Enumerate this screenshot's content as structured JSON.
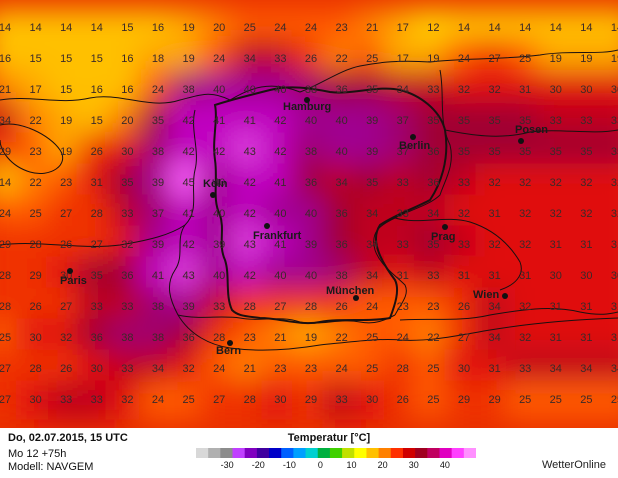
{
  "grid": [
    [
      14,
      14,
      14,
      14,
      15,
      16,
      19,
      20,
      25,
      24,
      24,
      23,
      21,
      17,
      12,
      14,
      14,
      14,
      14,
      14,
      14
    ],
    [
      16,
      15,
      15,
      15,
      16,
      18,
      19,
      24,
      34,
      33,
      26,
      22,
      25,
      17,
      19,
      24,
      27,
      25,
      19,
      19,
      19
    ],
    [
      21,
      17,
      15,
      16,
      16,
      24,
      38,
      40,
      40,
      40,
      38,
      36,
      35,
      34,
      33,
      32,
      32,
      31,
      30,
      30,
      30
    ],
    [
      34,
      22,
      19,
      15,
      20,
      35,
      42,
      41,
      41,
      42,
      40,
      40,
      39,
      37,
      35,
      35,
      35,
      35,
      33,
      33,
      33
    ],
    [
      29,
      23,
      19,
      26,
      30,
      38,
      42,
      42,
      43,
      42,
      38,
      40,
      39,
      37,
      36,
      35,
      35,
      35,
      35,
      35,
      35
    ],
    [
      14,
      22,
      23,
      31,
      35,
      39,
      45,
      40,
      42,
      41,
      36,
      34,
      35,
      33,
      36,
      33,
      32,
      32,
      32,
      32,
      32
    ],
    [
      24,
      25,
      27,
      28,
      33,
      37,
      41,
      40,
      42,
      40,
      40,
      36,
      34,
      33,
      34,
      32,
      31,
      32,
      32,
      32,
      32
    ],
    [
      29,
      28,
      26,
      27,
      32,
      39,
      42,
      39,
      43,
      41,
      39,
      36,
      34,
      33,
      35,
      33,
      32,
      32,
      31,
      31,
      31
    ],
    [
      28,
      29,
      30,
      35,
      36,
      41,
      43,
      40,
      42,
      40,
      40,
      38,
      34,
      31,
      33,
      31,
      31,
      31,
      30,
      30,
      30
    ],
    [
      28,
      26,
      27,
      33,
      33,
      38,
      39,
      33,
      28,
      27,
      28,
      26,
      24,
      23,
      23,
      26,
      34,
      32,
      31,
      31,
      31
    ],
    [
      25,
      30,
      32,
      36,
      38,
      38,
      36,
      28,
      23,
      21,
      19,
      22,
      25,
      24,
      22,
      27,
      34,
      32,
      31,
      31,
      31
    ],
    [
      27,
      28,
      26,
      30,
      33,
      34,
      32,
      24,
      21,
      23,
      23,
      24,
      25,
      28,
      25,
      30,
      31,
      33,
      34,
      34,
      34
    ],
    [
      27,
      30,
      33,
      33,
      32,
      24,
      25,
      27,
      28,
      30,
      29,
      33,
      30,
      26,
      25,
      29,
      29,
      25,
      25,
      25,
      25
    ]
  ],
  "cities": [
    {
      "name": "Hamburg",
      "label": "Hamburg"
    },
    {
      "name": "Berlin",
      "label": "Berlin"
    },
    {
      "name": "Posen",
      "label": "Posen"
    },
    {
      "name": "Koln",
      "label": "Köln"
    },
    {
      "name": "Frankfurt",
      "label": "Frankfurt"
    },
    {
      "name": "Prag",
      "label": "Prag"
    },
    {
      "name": "Paris",
      "label": "Paris"
    },
    {
      "name": "Munchen",
      "label": "München"
    },
    {
      "name": "Wien",
      "label": "Wien"
    },
    {
      "name": "Bern",
      "label": "Bern"
    }
  ],
  "info": {
    "date": "Do, 02.07.2015, 15 UTC",
    "run": "Mo 12 +75h",
    "model": "Modell: NAVGEM"
  },
  "legend": {
    "title": "Temperatur [°C]",
    "ticks": [
      "-30",
      "-20",
      "-10",
      "0",
      "10",
      "20",
      "30",
      "40"
    ],
    "range": [
      -40,
      50
    ],
    "colors": [
      "#d8d8d8",
      "#b0b0b0",
      "#8c8c8c",
      "#c040ff",
      "#8000c0",
      "#4000a0",
      "#0000c8",
      "#0060ff",
      "#00a0ff",
      "#00d0d0",
      "#00b040",
      "#40d000",
      "#c0e000",
      "#ffff00",
      "#ffc000",
      "#ff8000",
      "#ff3000",
      "#d00000",
      "#a00020",
      "#c00060",
      "#e000c0",
      "#ff40ff",
      "#ff90ff"
    ]
  },
  "brand": "WetterOnline"
}
